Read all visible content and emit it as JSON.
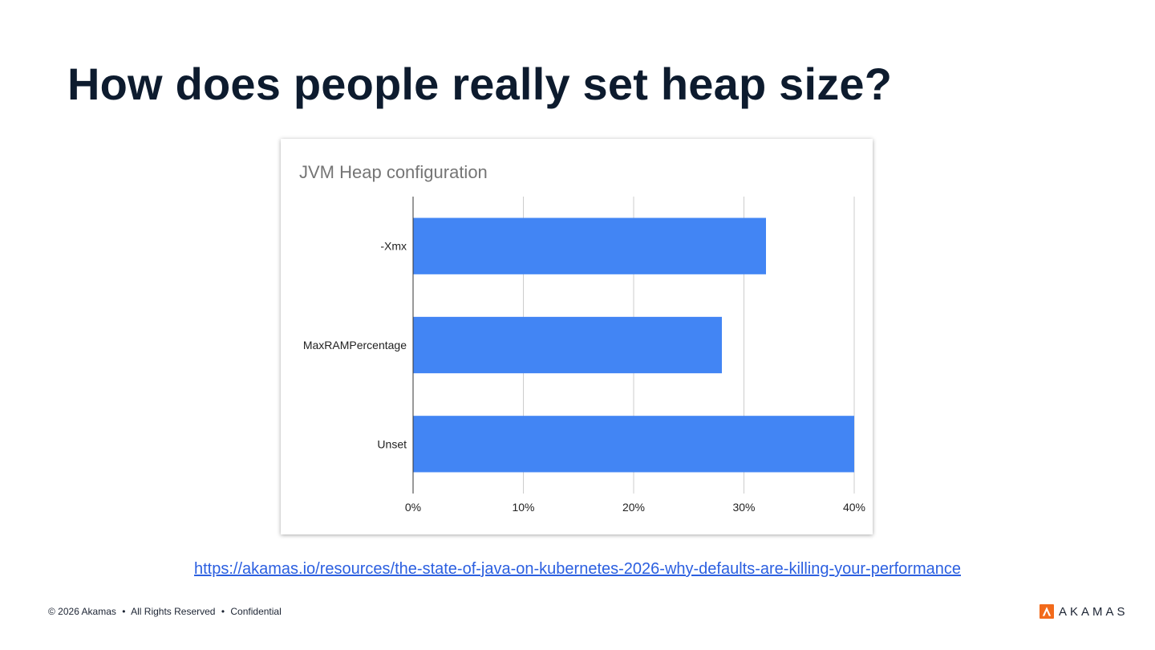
{
  "slide": {
    "title": "How does people really set heap size?",
    "source_url": "https://akamas.io/resources/the-state-of-java-on-kubernetes-2026-why-defaults-are-killing-your-performance"
  },
  "footer": {
    "copyright": "© 2026 Akamas",
    "rights": "All Rights Reserved",
    "confidential": "Confidential",
    "separator": "•"
  },
  "logo": {
    "text": "AKAMAS",
    "color": "#f26a1b"
  },
  "chart_data": {
    "type": "bar",
    "orientation": "horizontal",
    "title": "JVM Heap configuration",
    "categories": [
      "-Xmx",
      "MaxRAMPercentage",
      "Unset"
    ],
    "values": [
      32,
      28,
      40
    ],
    "value_unit": "%",
    "xlim": [
      0,
      40
    ],
    "xticks": [
      "0%",
      "10%",
      "20%",
      "30%",
      "40%"
    ],
    "grid": true,
    "bar_color": "#4285f4",
    "xlabel": "",
    "ylabel": ""
  }
}
